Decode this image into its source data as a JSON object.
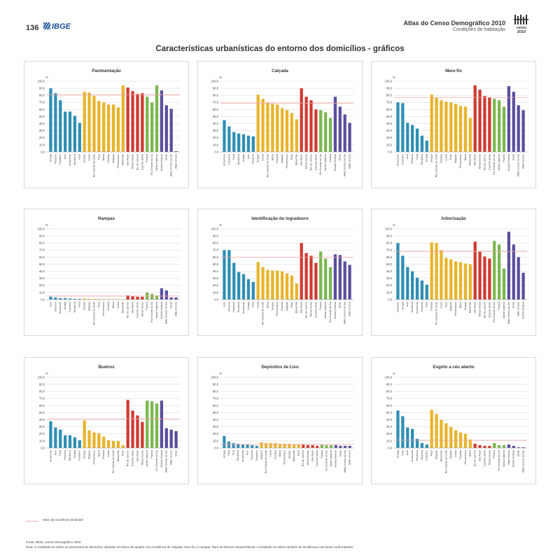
{
  "header": {
    "page_number": "136",
    "publisher": "IBGE",
    "atlas_title": "Atlas do Censo Demográfico 2010",
    "atlas_subtitle": "Condições de habitação",
    "logo_text": "CENSO 2010"
  },
  "page_title": "Características urbanísticas do entorno dos domicílios - gráficos",
  "colors": {
    "north": "#2e8fb5",
    "northeast": "#e8b42a",
    "southeast": "#d03a30",
    "south": "#7ab84f",
    "centerwest": "#5a4e9e",
    "reference_line": "#f4a6a6",
    "grid": "#cccccc"
  },
  "legend": {
    "reference_label": "Valor da ocorrência do Brasil"
  },
  "footer": {
    "source": "Fonte: IBGE, Censo Demográfico 2010.",
    "note": "Nota: O resultado se refere ao percentual de domicílios situados em faces de quadra com incidência de calçada; meio-fio; e rampas. Para as demais características, o resultado se refere também às incidências nas faces confrontantes."
  },
  "chart_data": [
    {
      "type": "bar",
      "title": "Pavimentação",
      "ylabel": "%",
      "ylim": [
        0,
        100
      ],
      "yticks": [
        "0,0",
        "10,0",
        "20,0",
        "30,0",
        "40,0",
        "50,0",
        "60,0",
        "70,0",
        "80,0",
        "90,0",
        "100,0"
      ],
      "reference": 81,
      "categories": [
        "Amapá",
        "Roraima",
        "Tocantins",
        "Acre",
        "Amazonas",
        "Rondônia",
        "Pará",
        "Sergipe",
        "Ceará",
        "Rio Grande do Norte",
        "Piauí",
        "Bahia",
        "Paraíba",
        "Alagoas",
        "Pernambuco",
        "Maranhão",
        "São Paulo",
        "Minas Gerais",
        "Rio de Janeiro",
        "Espírito Santo",
        "Paraná",
        "Rio Grande do Sul",
        "Santa Catarina",
        "Distrito Federal",
        "Goiás",
        "Mato Grosso do Sul",
        "Mato Grosso"
      ],
      "regions": [
        "N",
        "N",
        "N",
        "N",
        "N",
        "N",
        "N",
        "NE",
        "NE",
        "NE",
        "NE",
        "NE",
        "NE",
        "NE",
        "NE",
        "NE",
        "SE",
        "SE",
        "SE",
        "SE",
        "S",
        "S",
        "S",
        "CO",
        "CO",
        "CO",
        "CO"
      ],
      "values": [
        90,
        83,
        73,
        57,
        57,
        51,
        41,
        85,
        84,
        79,
        72,
        70,
        67,
        67,
        63,
        94,
        91,
        86,
        82,
        83,
        78,
        70,
        94,
        87,
        66,
        61,
        1
      ]
    },
    {
      "type": "bar",
      "title": "Calçada",
      "ylabel": "%",
      "ylim": [
        0,
        100
      ],
      "yticks": [
        "0,0",
        "10,0",
        "20,0",
        "30,0",
        "40,0",
        "50,0",
        "60,0",
        "70,0",
        "80,0",
        "90,0",
        "100,0"
      ],
      "reference": 69,
      "categories": [
        "Amazonas",
        "Tocantins",
        "Pará",
        "Rondônia",
        "Amapá",
        "Acre",
        "Roraima",
        "Sergipe",
        "Ceará",
        "Rio Grande do Norte",
        "Bahia",
        "Paraíba",
        "Alagoas",
        "Pernambuco",
        "Piauí",
        "Maranhão",
        "São Paulo",
        "Minas Gerais",
        "Rio de Janeiro",
        "Espírito Santo",
        "Rio Grande do Sul",
        "Santa Catarina",
        "Paraná",
        "Distrito Federal",
        "Goiás",
        "Mato Grosso do Sul",
        "Mato Grosso"
      ],
      "regions": [
        "N",
        "N",
        "N",
        "N",
        "N",
        "N",
        "N",
        "NE",
        "NE",
        "NE",
        "NE",
        "NE",
        "NE",
        "NE",
        "NE",
        "NE",
        "SE",
        "SE",
        "SE",
        "SE",
        "S",
        "S",
        "S",
        "CO",
        "CO",
        "CO",
        "CO"
      ],
      "values": [
        45,
        36,
        28,
        26,
        25,
        23,
        22,
        81,
        75,
        70,
        68,
        67,
        62,
        59,
        55,
        46,
        90,
        78,
        73,
        60,
        59,
        56,
        48,
        78,
        64,
        53,
        41
      ]
    },
    {
      "type": "bar",
      "title": "Meio-fio",
      "ylabel": "%",
      "ylim": [
        0,
        100
      ],
      "yticks": [
        "0,0",
        "10,0",
        "20,0",
        "30,0",
        "40,0",
        "50,0",
        "60,0",
        "70,0",
        "80,0",
        "90,0",
        "100,0"
      ],
      "reference": 77,
      "categories": [
        "Amazonas",
        "Tocantins",
        "Acre",
        "Roraima",
        "Pará",
        "Rondônia",
        "Amapá",
        "Sergipe",
        "Rio Grande do Norte",
        "Paraíba",
        "Ceará",
        "Piauí",
        "Alagoas",
        "Pernambuco",
        "Bahia",
        "Maranhão",
        "São Paulo",
        "Minas Gerais",
        "Rio de Janeiro",
        "Espírito Santo",
        "Rio Grande do Sul",
        "Santa Catarina",
        "Paraná",
        "Distrito Federal",
        "Goiás",
        "Mato Grosso do Sul",
        "Mato Grosso"
      ],
      "regions": [
        "N",
        "N",
        "N",
        "N",
        "N",
        "N",
        "N",
        "NE",
        "NE",
        "NE",
        "NE",
        "NE",
        "NE",
        "NE",
        "NE",
        "NE",
        "SE",
        "SE",
        "SE",
        "SE",
        "S",
        "S",
        "S",
        "CO",
        "CO",
        "CO",
        "CO"
      ],
      "values": [
        70,
        69,
        41,
        38,
        33,
        23,
        16,
        81,
        77,
        73,
        71,
        70,
        68,
        65,
        64,
        48,
        94,
        88,
        79,
        77,
        75,
        73,
        64,
        93,
        85,
        66,
        59
      ]
    },
    {
      "type": "bar",
      "title": "Rampas",
      "ylabel": "%",
      "ylim": [
        0,
        100
      ],
      "yticks": [
        "0,0",
        "10,0",
        "20,0",
        "30,0",
        "40,0",
        "50,0",
        "60,0",
        "70,0",
        "80,0",
        "90,0",
        "100,0"
      ],
      "reference": 5,
      "categories": [
        "Acre",
        "Roraima",
        "Amazonas",
        "Amapá",
        "Tocantins",
        "Rondônia",
        "Pará",
        "Sergipe",
        "Alagoas",
        "Rio Grande do Norte",
        "Piauí",
        "Pernambuco",
        "Paraíba",
        "Bahia",
        "Ceará",
        "Maranhão",
        "Rio de Janeiro",
        "São Paulo",
        "Espírito Santo",
        "Minas Gerais",
        "Paraná",
        "Rio Grande do Sul",
        "Santa Catarina",
        "Distrito Federal",
        "Mato Grosso do Sul",
        "Goiás",
        "Mato Grosso"
      ],
      "regions": [
        "N",
        "N",
        "N",
        "N",
        "N",
        "N",
        "N",
        "NE",
        "NE",
        "NE",
        "NE",
        "NE",
        "NE",
        "NE",
        "NE",
        "NE",
        "SE",
        "SE",
        "SE",
        "SE",
        "S",
        "S",
        "S",
        "CO",
        "CO",
        "CO",
        "CO"
      ],
      "values": [
        4,
        3,
        2,
        2,
        1.5,
        1,
        1,
        1.5,
        1.2,
        1,
        1,
        0.8,
        0.7,
        0.6,
        0.5,
        0.4,
        6,
        5,
        4,
        4,
        10,
        8,
        6,
        16,
        13,
        3,
        3
      ]
    },
    {
      "type": "bar",
      "title": "Identificação do logradouro",
      "ylabel": "%",
      "ylim": [
        0,
        100
      ],
      "yticks": [
        "0,0",
        "10,0",
        "20,0",
        "30,0",
        "40,0",
        "50,0",
        "60,0",
        "70,0",
        "80,0",
        "90,0",
        "100,0"
      ],
      "reference": 60,
      "categories": [
        "Acre",
        "Roraima",
        "Tocantins",
        "Rondônia",
        "Amazonas",
        "Amapá",
        "Pará",
        "Ceará",
        "Rio Grande do Norte",
        "Bahia",
        "Sergipe",
        "Pernambuco",
        "Paraíba",
        "Alagoas",
        "Piauí",
        "Maranhão",
        "São Paulo",
        "Rio de Janeiro",
        "Minas Gerais",
        "Espírito Santo",
        "Paraná",
        "Santa Catarina",
        "Rio Grande do Sul",
        "Distrito Federal",
        "Goiás",
        "Mato Grosso do Sul",
        "Mato Grosso"
      ],
      "regions": [
        "N",
        "N",
        "N",
        "N",
        "N",
        "N",
        "N",
        "NE",
        "NE",
        "NE",
        "NE",
        "NE",
        "NE",
        "NE",
        "NE",
        "NE",
        "SE",
        "SE",
        "SE",
        "SE",
        "S",
        "S",
        "S",
        "CO",
        "CO",
        "CO",
        "CO"
      ],
      "values": [
        70,
        70,
        52,
        39,
        36,
        29,
        25,
        53,
        46,
        42,
        41,
        41,
        40,
        37,
        34,
        23,
        80,
        66,
        62,
        52,
        68,
        58,
        46,
        64,
        63,
        54,
        49
      ]
    },
    {
      "type": "bar",
      "title": "Arborização",
      "ylabel": "%",
      "ylim": [
        0,
        100
      ],
      "yticks": [
        "0,0",
        "10,0",
        "20,0",
        "30,0",
        "40,0",
        "50,0",
        "60,0",
        "70,0",
        "80,0",
        "90,0",
        "100,0"
      ],
      "reference": 68,
      "categories": [
        "Tocantins",
        "Amapá",
        "Acre",
        "Rondônia",
        "Amazonas",
        "Roraima",
        "Pará",
        "Paraíba",
        "Rio Grande do Norte",
        "Ceará",
        "Piauí",
        "Alagoas",
        "Pernambuco",
        "Bahia",
        "Sergipe",
        "Maranhão",
        "São Paulo",
        "Minas Gerais",
        "Rio de Janeiro",
        "Espírito Santo",
        "Rio Grande do Sul",
        "Paraná",
        "Santa Catarina",
        "Mato Grosso do Sul",
        "Goiás",
        "Mato Grosso",
        "Distrito Federal"
      ],
      "regions": [
        "N",
        "N",
        "N",
        "N",
        "N",
        "N",
        "N",
        "NE",
        "NE",
        "NE",
        "NE",
        "NE",
        "NE",
        "NE",
        "NE",
        "NE",
        "SE",
        "SE",
        "SE",
        "SE",
        "S",
        "S",
        "S",
        "CO",
        "CO",
        "CO",
        "CO"
      ],
      "values": [
        80,
        62,
        46,
        40,
        31,
        27,
        21,
        81,
        80,
        70,
        59,
        57,
        54,
        53,
        51,
        50,
        82,
        68,
        61,
        58,
        83,
        78,
        44,
        96,
        78,
        60,
        38
      ]
    },
    {
      "type": "bar",
      "title": "Bueiros",
      "ylabel": "%",
      "ylim": [
        0,
        100
      ],
      "yticks": [
        "0,0",
        "10,0",
        "20,0",
        "30,0",
        "40,0",
        "50,0",
        "60,0",
        "70,0",
        "80,0",
        "90,0",
        "100,0"
      ],
      "reference": 41,
      "categories": [
        "Amazonas",
        "Acre",
        "Pará",
        "Roraima",
        "Rondônia",
        "Amapá",
        "Tocantins",
        "Sergipe",
        "Alagoas",
        "Pernambuco",
        "Bahia",
        "Paraíba",
        "Ceará",
        "Rio Grande do Norte",
        "Maranhão",
        "Piauí",
        "Rio de Janeiro",
        "Espírito Santo",
        "São Paulo",
        "Minas Gerais",
        "Santa Catarina",
        "Paraná",
        "Rio Grande do Sul",
        "Distrito Federal",
        "Mato Grosso do Sul",
        "Mato Grosso",
        "Goiás"
      ],
      "regions": [
        "N",
        "N",
        "N",
        "N",
        "N",
        "N",
        "N",
        "NE",
        "NE",
        "NE",
        "NE",
        "NE",
        "NE",
        "NE",
        "NE",
        "NE",
        "SE",
        "SE",
        "SE",
        "SE",
        "S",
        "S",
        "S",
        "CO",
        "CO",
        "CO",
        "CO"
      ],
      "values": [
        38,
        29,
        26,
        18,
        18,
        15,
        11,
        39,
        25,
        22,
        21,
        16,
        11,
        10,
        10,
        4,
        68,
        53,
        46,
        37,
        67,
        66,
        63,
        67,
        28,
        26,
        24
      ]
    },
    {
      "type": "bar",
      "title": "Depósitos de Lixo",
      "ylabel": "%",
      "ylim": [
        0,
        100
      ],
      "yticks": [
        "0,0",
        "10,0",
        "20,0",
        "30,0",
        "40,0",
        "50,0",
        "60,0",
        "70,0",
        "80,0",
        "90,0",
        "100,0"
      ],
      "reference": 5,
      "categories": [
        "Amapá",
        "Pará",
        "Acre",
        "Rondônia",
        "Amazonas",
        "Acre",
        "Roraima",
        "Tocantins",
        "Alagoas",
        "Rio Grande do Norte",
        "Ceará",
        "Paraíba",
        "Bahia",
        "Pernambuco",
        "Sergipe",
        "Maranhão",
        "Piauí",
        "Rio de Janeiro",
        "Minas Gerais",
        "São Paulo",
        "Espírito Santo",
        "Paraná",
        "Rio Grande do Sul",
        "Santa Catarina",
        "Distrito Federal",
        "Goiás",
        "Mato Grosso do Sul",
        "Mato Grosso"
      ],
      "regions": [
        "N",
        "N",
        "N",
        "N",
        "N",
        "N",
        "N",
        "N",
        "NE",
        "NE",
        "NE",
        "NE",
        "NE",
        "NE",
        "NE",
        "NE",
        "NE",
        "SE",
        "SE",
        "SE",
        "SE",
        "S",
        "S",
        "S",
        "CO",
        "CO",
        "CO",
        "CO"
      ],
      "values": [
        17,
        9,
        7,
        6,
        5,
        5,
        4,
        3,
        8,
        7,
        7,
        7,
        6,
        6,
        6,
        5,
        5,
        5,
        4,
        4,
        3,
        5,
        4,
        4,
        4,
        3,
        3,
        3
      ]
    },
    {
      "type": "bar",
      "title": "Esgoto a céu aberto",
      "ylabel": "%",
      "ylim": [
        0,
        100
      ],
      "yticks": [
        "0,0",
        "10,0",
        "20,0",
        "30,0",
        "40,0",
        "50,0",
        "60,0",
        "70,0",
        "80,0",
        "90,0",
        "100,0"
      ],
      "reference": 11,
      "categories": [
        "Amapá",
        "Pará",
        "Acre",
        "Amazonas",
        "Rondônia",
        "Roraima",
        "Tocantins",
        "Piauí",
        "Alagoas",
        "Maranhão",
        "Rio Grande do Norte",
        "Sergipe",
        "Ceará",
        "Paraíba",
        "Pernambuco",
        "Bahia",
        "Rio de Janeiro",
        "São Paulo",
        "Espírito Santo",
        "Minas Gerais",
        "Paraná",
        "Rio Grande do Sul",
        "Santa Catarina",
        "Mato Grosso",
        "Distrito Federal",
        "Goiás",
        "Mato Grosso do Sul"
      ],
      "regions": [
        "N",
        "N",
        "N",
        "N",
        "N",
        "N",
        "N",
        "NE",
        "NE",
        "NE",
        "NE",
        "NE",
        "NE",
        "NE",
        "NE",
        "NE",
        "SE",
        "SE",
        "SE",
        "SE",
        "S",
        "S",
        "S",
        "CO",
        "CO",
        "CO",
        "CO"
      ],
      "values": [
        53,
        45,
        29,
        27,
        13,
        7,
        5,
        54,
        48,
        40,
        35,
        30,
        25,
        22,
        20,
        12,
        6,
        4,
        3,
        3,
        7,
        4,
        4,
        5,
        3,
        1,
        1
      ]
    }
  ]
}
